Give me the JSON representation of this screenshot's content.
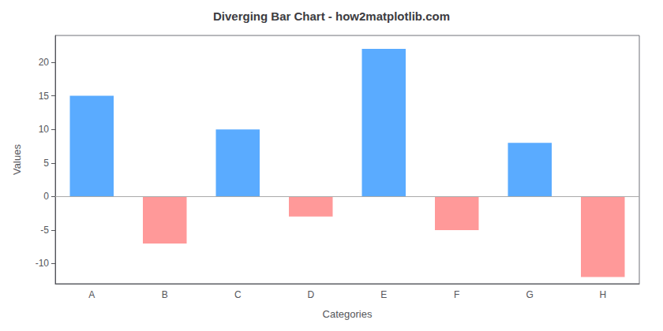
{
  "chart_data": {
    "type": "bar",
    "title": "Diverging Bar Chart - how2matplotlib.com",
    "xlabel": "Categories",
    "ylabel": "Values",
    "categories": [
      "A",
      "B",
      "C",
      "D",
      "E",
      "F",
      "G",
      "H"
    ],
    "values": [
      15,
      -7,
      10,
      -3,
      22,
      -5,
      8,
      -12
    ],
    "colors": [
      "#5aabff",
      "#ff9999",
      "#5aabff",
      "#ff9999",
      "#5aabff",
      "#ff9999",
      "#5aabff",
      "#ff9999"
    ],
    "ylim": [
      -13,
      24
    ],
    "yticks": [
      -10,
      -5,
      0,
      5,
      10,
      15,
      20
    ],
    "grid": false
  }
}
